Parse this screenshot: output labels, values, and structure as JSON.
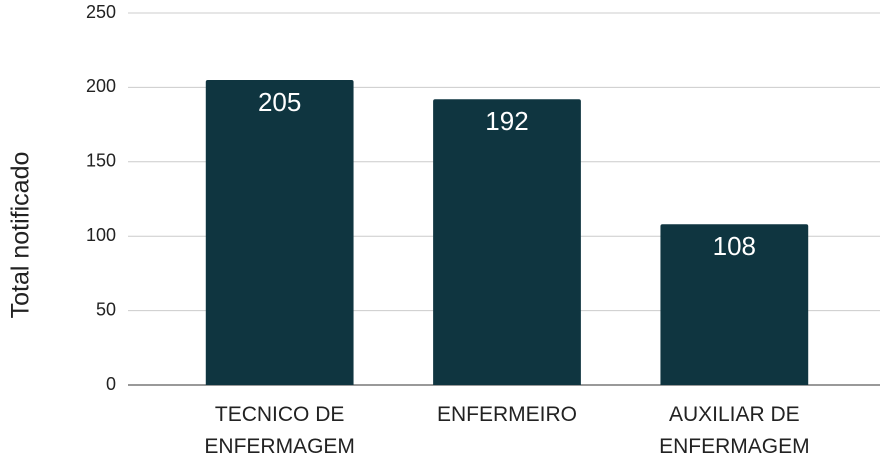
{
  "chart_data": {
    "type": "bar",
    "y_axis_label": "Total notificado",
    "categories": [
      "TECNICO DE ENFERMAGEM",
      "ENFERMEIRO",
      "AUXILIAR DE ENFERMAGEM"
    ],
    "values": [
      205,
      192,
      108
    ],
    "color": "#0f3540",
    "ylim": [
      0,
      250
    ],
    "yticks": [
      0,
      50,
      100,
      150,
      200,
      250
    ],
    "grid": true
  }
}
